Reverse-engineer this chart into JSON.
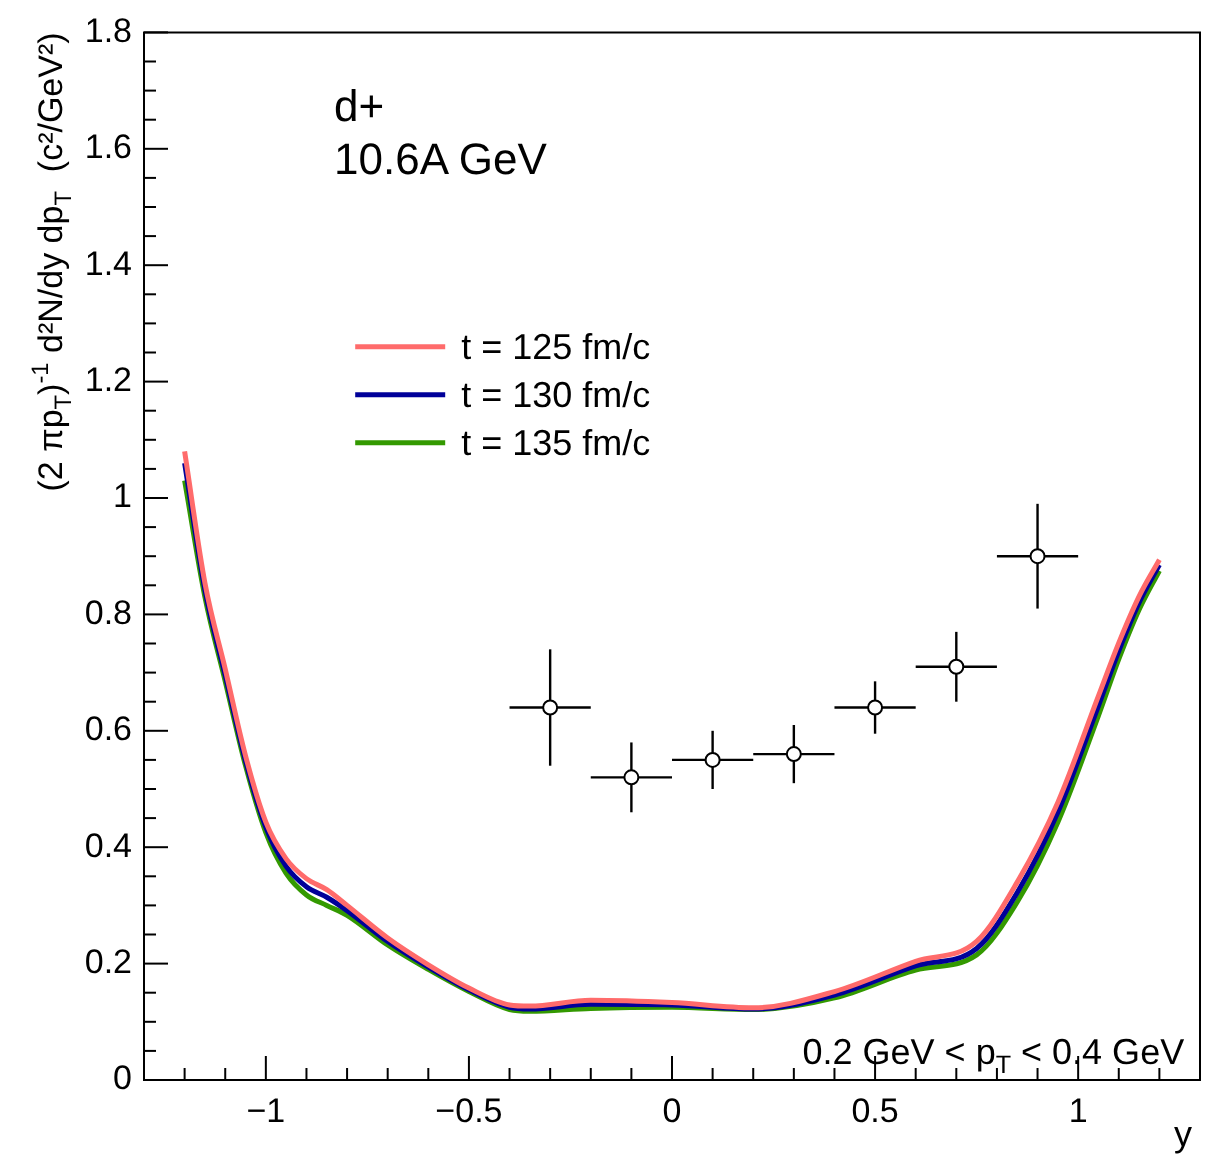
{
  "chart_data": {
    "type": "line",
    "xlabel": "y",
    "ylabel": "(2 πp$_{T}$)$^{-1}$ d²N/dy dp$_{T}$  (c²/GeV²)",
    "annotations": [
      "d+",
      "10.6A GeV",
      "0.2 GeV < p$_{T}$ < 0.4 GeV"
    ],
    "x": [
      -1.2,
      -1.15,
      -1.1,
      -1.05,
      -1,
      -0.95,
      -0.9,
      -0.85,
      -0.8,
      -0.7,
      -0.6,
      -0.5,
      -0.4,
      -0.35,
      -0.2,
      0,
      0.2,
      0.4,
      0.6,
      0.75,
      0.85,
      0.95,
      1.05,
      1.1,
      1.15,
      1.2
    ],
    "series": [
      {
        "name": "t = 125 fm/c",
        "color": "#ff6b6b",
        "values": [
          1.08,
          0.854,
          0.706,
          0.557,
          0.443,
          0.38,
          0.346,
          0.327,
          0.3,
          0.244,
          0.198,
          0.158,
          0.129,
          0.127,
          0.137,
          0.133,
          0.124,
          0.152,
          0.204,
          0.238,
          0.34,
          0.477,
          0.66,
          0.751,
          0.831,
          0.894
        ]
      },
      {
        "name": "t = 130 fm/c",
        "color": "#000099",
        "values": [
          1.06,
          0.842,
          0.695,
          0.548,
          0.434,
          0.367,
          0.332,
          0.314,
          0.291,
          0.238,
          0.194,
          0.155,
          0.125,
          0.122,
          0.13,
          0.129,
          0.122,
          0.146,
          0.196,
          0.226,
          0.322,
          0.46,
          0.643,
          0.737,
          0.82,
          0.885
        ]
      },
      {
        "name": "t = 135 fm/c",
        "color": "#339900",
        "values": [
          1.03,
          0.83,
          0.685,
          0.54,
          0.425,
          0.355,
          0.318,
          0.3,
          0.283,
          0.232,
          0.19,
          0.152,
          0.121,
          0.118,
          0.123,
          0.125,
          0.121,
          0.141,
          0.189,
          0.215,
          0.306,
          0.443,
          0.626,
          0.723,
          0.808,
          0.875
        ]
      },
      {
        "type": "scatter",
        "marker": "circle",
        "color": "#000000",
        "x": [
          -0.3,
          -0.1,
          0.1,
          0.3,
          0.5,
          0.7,
          0.9
        ],
        "values": [
          0.64,
          0.52,
          0.55,
          0.56,
          0.64,
          0.71,
          0.9
        ],
        "errors": [
          0.1,
          0.06,
          0.05,
          0.05,
          0.045,
          0.06,
          0.09
        ],
        "xerrors": [
          0.1,
          0.1,
          0.1,
          0.1,
          0.1,
          0.1,
          0.1
        ]
      }
    ],
    "xlim": [
      -1.3,
      1.3
    ],
    "xticks": [
      {
        "value": -1.2,
        "label": null
      },
      {
        "value": -1.1,
        "label": null
      },
      {
        "value": -1,
        "label": "−1"
      },
      {
        "value": -0.9,
        "label": null
      },
      {
        "value": -0.8,
        "label": null
      },
      {
        "value": -0.7,
        "label": null
      },
      {
        "value": -0.6,
        "label": null
      },
      {
        "value": -0.5,
        "label": "−0.5"
      },
      {
        "value": -0.4,
        "label": null
      },
      {
        "value": -0.3,
        "label": null
      },
      {
        "value": -0.2,
        "label": null
      },
      {
        "value": -0.1,
        "label": null
      },
      0,
      {
        "value": 0.1,
        "label": null
      },
      {
        "value": 0.2,
        "label": null
      },
      {
        "value": 0.3,
        "label": null
      },
      {
        "value": 0.4,
        "label": null
      },
      0.5,
      {
        "value": 0.6,
        "label": null
      },
      {
        "value": 0.7,
        "label": null
      },
      {
        "value": 0.8,
        "label": null
      },
      {
        "value": 0.9,
        "label": null
      },
      1,
      {
        "value": 1.1,
        "label": null
      },
      {
        "value": 1.2,
        "label": null
      }
    ],
    "ylim": [
      0,
      1.8
    ],
    "yticks": [
      0,
      {
        "value": 0.05,
        "label": null
      },
      {
        "value": 0.1,
        "label": null
      },
      {
        "value": 0.15,
        "label": null
      },
      0.2,
      {
        "value": 0.25,
        "label": null
      },
      {
        "value": 0.3,
        "label": null
      },
      {
        "value": 0.35,
        "label": null
      },
      0.4,
      {
        "value": 0.45,
        "label": null
      },
      {
        "value": 0.5,
        "label": null
      },
      {
        "value": 0.55,
        "label": null
      },
      0.6,
      {
        "value": 0.65,
        "label": null
      },
      {
        "value": 0.7,
        "label": null
      },
      {
        "value": 0.75,
        "label": null
      },
      0.8,
      {
        "value": 0.85,
        "label": null
      },
      {
        "value": 0.9,
        "label": null
      },
      {
        "value": 0.95,
        "label": null
      },
      1,
      {
        "value": 1.05,
        "label": null
      },
      {
        "value": 1.1,
        "label": null
      },
      {
        "value": 1.15,
        "label": null
      },
      1.2,
      {
        "value": 1.25,
        "label": null
      },
      {
        "value": 1.3,
        "label": null
      },
      {
        "value": 1.35,
        "label": null
      },
      1.4,
      {
        "value": 1.45,
        "label": null
      },
      {
        "value": 1.5,
        "label": null
      },
      {
        "value": 1.55,
        "label": null
      },
      1.6,
      {
        "value": 1.65,
        "label": null
      },
      {
        "value": 1.7,
        "label": null
      },
      {
        "value": 1.75,
        "label": null
      },
      1.8
    ],
    "legend": "top left",
    "grid": false
  }
}
